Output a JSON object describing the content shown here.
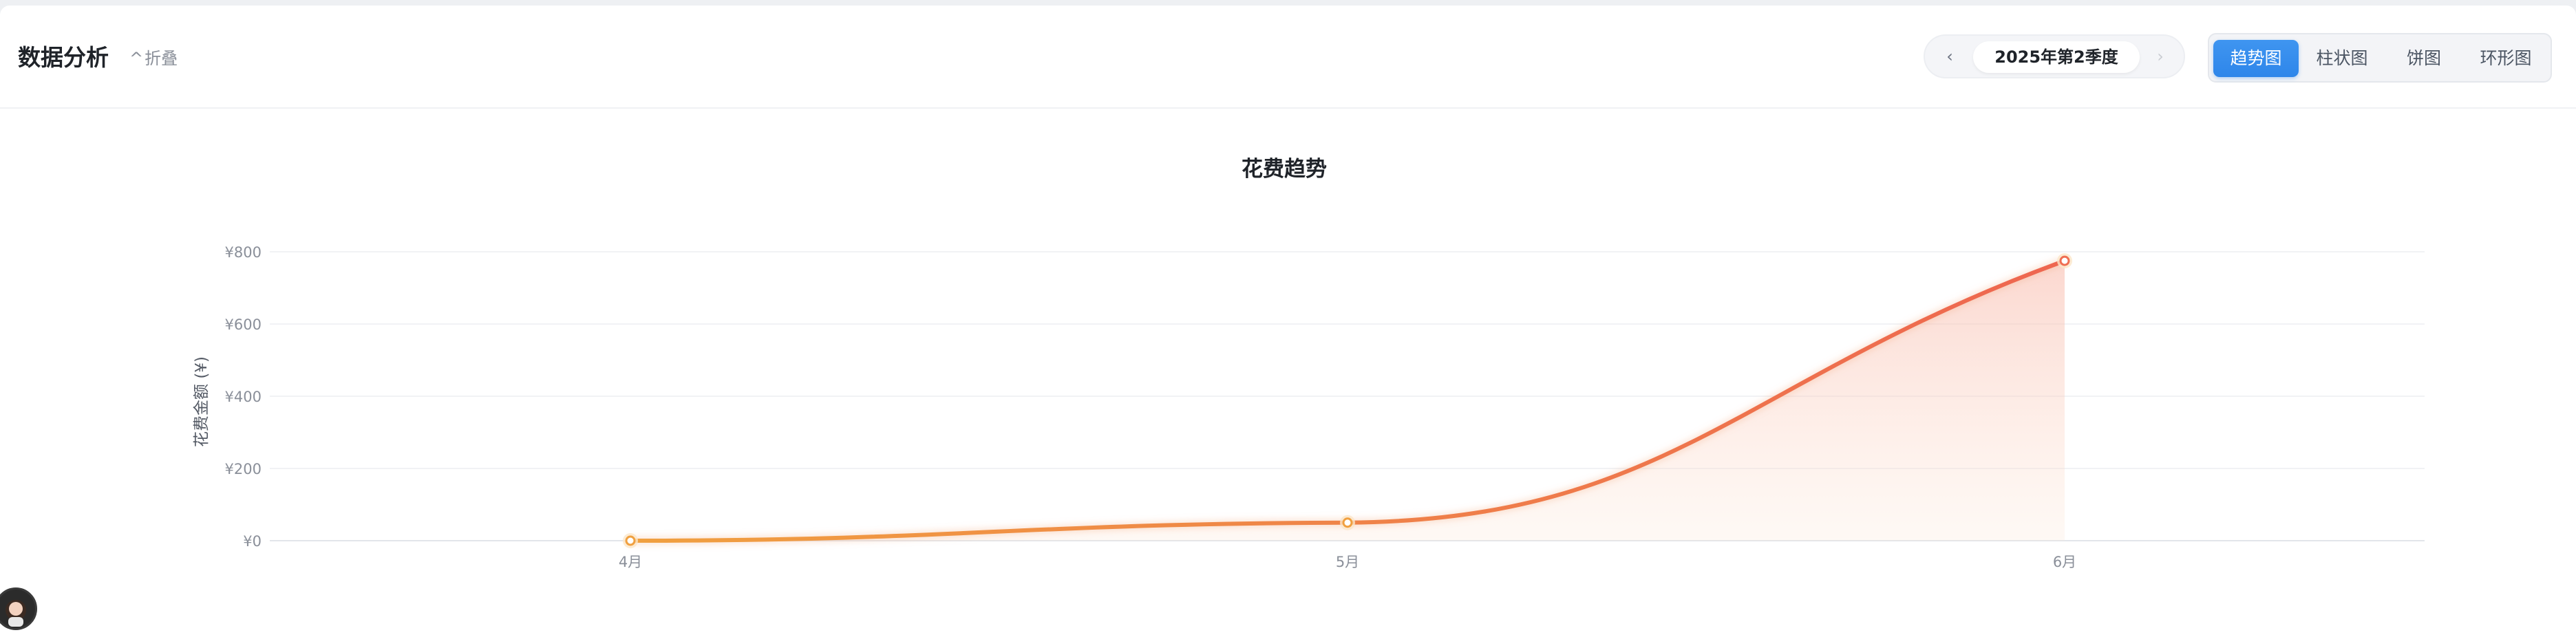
{
  "header": {
    "title": "数据分析",
    "collapse_label": "折叠"
  },
  "period": {
    "value": "2025年第2季度"
  },
  "chart_tabs": [
    {
      "label": "趋势图",
      "active": true
    },
    {
      "label": "柱状图",
      "active": false
    },
    {
      "label": "饼图",
      "active": false
    },
    {
      "label": "环形图",
      "active": false
    }
  ],
  "colors": {
    "accent": "#2e86ea",
    "line_start": "#f0a040",
    "line_end": "#ee6650"
  },
  "chart_data": {
    "type": "line",
    "title": "花费趋势",
    "xlabel": "",
    "ylabel": "花费金额 (¥)",
    "categories": [
      "4月",
      "5月",
      "6月"
    ],
    "series": [
      {
        "values": [
          0,
          50,
          775
        ]
      }
    ],
    "ylim": [
      0,
      800
    ],
    "yticks": [
      "¥0",
      "¥200",
      "¥400",
      "¥600",
      "¥800"
    ],
    "grid": true,
    "smooth": true,
    "area_fill": true
  }
}
